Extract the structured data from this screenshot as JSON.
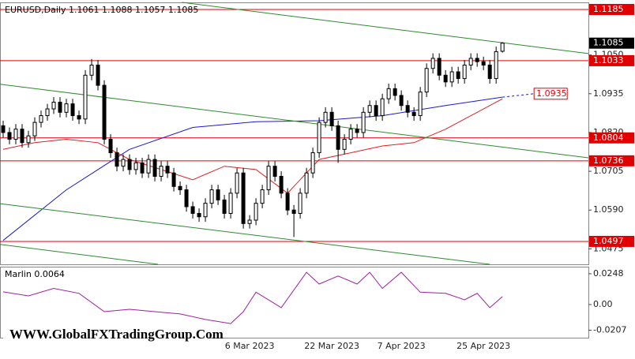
{
  "chart_data": [
    {
      "type": "candlestick",
      "title": "EURUSD,Daily  1.1061 1.1088 1.1057 1.1085",
      "categories": [
        null,
        null,
        null,
        null,
        null,
        null,
        null,
        null,
        null,
        null,
        null,
        null,
        null,
        null,
        null,
        null,
        null,
        null,
        null,
        null,
        null,
        null,
        null,
        null,
        null,
        null,
        null,
        null,
        null,
        null,
        null,
        null,
        null,
        null,
        null,
        null,
        null,
        null,
        null,
        "6 Mar 2023",
        null,
        null,
        null,
        null,
        null,
        null,
        null,
        null,
        null,
        null,
        null,
        null,
        "22 Mar 2023",
        null,
        null,
        null,
        null,
        null,
        null,
        null,
        null,
        null,
        null,
        "7 Apr 2023",
        null,
        null,
        null,
        null,
        null,
        null,
        null,
        null,
        null,
        null,
        null,
        null,
        "25 Apr 2023",
        null,
        null,
        null
      ],
      "open": [
        1.084,
        1.082,
        1.08,
        1.083,
        1.079,
        1.081,
        1.085,
        1.087,
        1.089,
        1.091,
        1.088,
        1.0905,
        1.087,
        1.086,
        1.099,
        1.102,
        1.096,
        1.08,
        1.076,
        1.072,
        1.074,
        1.071,
        1.073,
        1.07,
        1.074,
        1.069,
        1.072,
        1.07,
        1.066,
        1.065,
        1.06,
        1.058,
        1.057,
        1.061,
        1.065,
        1.062,
        1.058,
        1.064,
        1.07,
        1.055,
        1.056,
        1.061,
        1.065,
        1.072,
        1.069,
        1.064,
        1.059,
        1.058,
        1.064,
        1.07,
        1.076,
        1.085,
        1.088,
        1.084,
        1.077,
        1.08,
        1.083,
        1.082,
        1.088,
        1.09,
        1.087,
        1.092,
        1.095,
        1.093,
        1.09,
        1.088,
        1.087,
        1.094,
        1.101,
        1.104,
        1.099,
        1.097,
        1.1,
        1.098,
        1.102,
        1.104,
        1.103,
        1.102,
        1.098,
        1.1061
      ],
      "high": [
        1.0855,
        1.0835,
        1.0845,
        1.0845,
        1.0825,
        1.0865,
        1.0885,
        1.0905,
        1.0925,
        1.0925,
        1.092,
        1.092,
        1.0885,
        1.1005,
        1.1038,
        1.1035,
        1.0975,
        1.0815,
        1.0775,
        1.0755,
        1.0755,
        1.0745,
        1.0745,
        1.0755,
        1.0755,
        1.0735,
        1.0735,
        1.0715,
        1.0675,
        1.0665,
        1.0615,
        1.0595,
        1.0625,
        1.0665,
        1.0665,
        1.0635,
        1.0655,
        1.0715,
        1.0715,
        1.0575,
        1.0625,
        1.0665,
        1.0735,
        1.0735,
        1.0705,
        1.0655,
        1.0605,
        1.0655,
        1.0715,
        1.0775,
        1.0865,
        1.0895,
        1.0895,
        1.0855,
        1.0815,
        1.0845,
        1.0845,
        1.0895,
        1.0915,
        1.0915,
        1.0935,
        1.0965,
        1.0965,
        1.0945,
        1.0915,
        1.0895,
        1.0955,
        1.1025,
        1.1055,
        1.1055,
        1.1005,
        1.1015,
        1.1015,
        1.1035,
        1.1055,
        1.1055,
        1.1045,
        1.1035,
        1.1075,
        1.1088
      ],
      "low": [
        1.0805,
        1.0785,
        1.0785,
        1.0775,
        1.0775,
        1.0795,
        1.0835,
        1.0855,
        1.0875,
        1.0865,
        1.0865,
        1.0855,
        1.0845,
        1.0845,
        1.0975,
        1.0945,
        1.0785,
        1.0745,
        1.0705,
        1.0705,
        1.0695,
        1.0695,
        1.0685,
        1.0685,
        1.0675,
        1.0675,
        1.0685,
        1.0645,
        1.0635,
        1.0585,
        1.0565,
        1.0555,
        1.0555,
        1.0595,
        1.0605,
        1.0565,
        1.0565,
        1.0625,
        1.0535,
        1.0535,
        1.0545,
        1.0595,
        1.0635,
        1.0675,
        1.0625,
        1.0575,
        1.051,
        1.0565,
        1.0625,
        1.0685,
        1.0745,
        1.0835,
        1.0825,
        1.073,
        1.0755,
        1.0785,
        1.0805,
        1.0805,
        1.0865,
        1.0855,
        1.0855,
        1.0905,
        1.0915,
        1.0885,
        1.0865,
        1.0855,
        1.0855,
        1.0925,
        1.0995,
        1.0975,
        1.0955,
        1.0955,
        1.0965,
        1.0965,
        1.1005,
        1.1015,
        1.1005,
        1.0965,
        1.0965,
        1.1057
      ],
      "close": [
        1.082,
        1.08,
        1.083,
        1.079,
        1.081,
        1.085,
        1.087,
        1.089,
        1.091,
        1.088,
        1.0905,
        1.087,
        1.086,
        1.099,
        1.102,
        1.096,
        1.08,
        1.076,
        1.072,
        1.074,
        1.071,
        1.073,
        1.07,
        1.074,
        1.069,
        1.072,
        1.07,
        1.066,
        1.065,
        1.06,
        1.058,
        1.057,
        1.061,
        1.065,
        1.062,
        1.058,
        1.064,
        1.07,
        1.055,
        1.056,
        1.061,
        1.065,
        1.072,
        1.069,
        1.064,
        1.059,
        1.058,
        1.064,
        1.07,
        1.076,
        1.085,
        1.088,
        1.084,
        1.077,
        1.08,
        1.083,
        1.082,
        1.088,
        1.09,
        1.087,
        1.092,
        1.095,
        1.093,
        1.09,
        1.088,
        1.087,
        1.094,
        1.101,
        1.104,
        1.099,
        1.097,
        1.1,
        1.098,
        1.102,
        1.104,
        1.103,
        1.102,
        1.098,
        1.106,
        1.1085
      ],
      "xlim": [
        -0.5,
        92.6
      ],
      "ylim": [
        1.0429,
        1.1206
      ],
      "yticks": [
        {
          "value": 1.105,
          "label": "1.1050"
        },
        1.0935,
        {
          "value": 1.082,
          "label": "1.0820"
        },
        1.0705,
        {
          "value": 1.059,
          "label": "1.0590"
        },
        1.0475
      ],
      "levels": [
        {
          "value": 1.1185,
          "color": "#e00000"
        },
        {
          "value": 1.1033,
          "color": "#e00000"
        },
        {
          "value": 1.0804,
          "color": "#e00000"
        },
        {
          "value": 1.0736,
          "color": "#e00000"
        },
        {
          "value": 1.0497,
          "color": "#e00000"
        }
      ],
      "lines": [
        {
          "color": "#1a1ad0",
          "x": [
            0,
            10,
            20,
            30,
            40,
            50,
            60,
            70,
            79
          ],
          "values": [
            1.05,
            1.065,
            1.077,
            1.0835,
            1.0852,
            1.0855,
            1.087,
            1.09,
            1.0925
          ]
        },
        {
          "color": "#e02020",
          "x": [
            0,
            5,
            10,
            15,
            20,
            25,
            30,
            35,
            40,
            45,
            50,
            55,
            60,
            65,
            70,
            75,
            79
          ],
          "values": [
            1.077,
            1.079,
            1.08,
            1.079,
            1.074,
            1.071,
            1.068,
            1.072,
            1.071,
            1.064,
            1.074,
            1.076,
            1.078,
            1.079,
            1.083,
            1.088,
            1.092
          ]
        },
        {
          "color": "#2e8b2e",
          "x": [
            28.3,
            92.6
          ],
          "values": [
            1.1206,
            1.1054
          ]
        },
        {
          "color": "#2e8b2e",
          "x": [
            -0.5,
            92.6
          ],
          "values": [
            1.0963,
            1.0745
          ]
        },
        {
          "color": "#2e8b2e",
          "x": [
            -0.5,
            77
          ],
          "values": [
            1.0609,
            1.0429
          ]
        },
        {
          "color": "#2e8b2e",
          "x": [
            -0.5,
            24.5
          ],
          "values": [
            1.0488,
            1.0429
          ]
        }
      ],
      "projection": {
        "color": "#1a1ad0",
        "x": [
          79,
          84
        ],
        "values": [
          1.0925,
          1.0935
        ]
      }
    },
    {
      "type": "line",
      "title": "Marlin 0.0064",
      "color": "#a020a0",
      "x": [
        0,
        4,
        8,
        12,
        16,
        20,
        24,
        28,
        32,
        36,
        38,
        40,
        44,
        48,
        50,
        53,
        56,
        58,
        60,
        63,
        66,
        70,
        73,
        75,
        77,
        79
      ],
      "values": [
        0.0102,
        0.007,
        0.013,
        0.009,
        -0.0057,
        -0.0038,
        -0.0057,
        -0.0076,
        -0.012,
        -0.0153,
        -0.0057,
        0.01,
        -0.0025,
        0.026,
        0.0165,
        0.023,
        0.0165,
        0.026,
        0.013,
        0.026,
        0.01,
        0.009,
        0.0038,
        0.009,
        -0.0025,
        0.0064
      ],
      "xlim": [
        -0.5,
        92.6
      ],
      "ylim": [
        -0.0267,
        0.0305
      ],
      "yticks": [
        0.0248,
        {
          "value": 0,
          "label": "0.00"
        },
        -0.0207
      ]
    }
  ],
  "watermark": "WWW.GlobalFXTradingGroup.Com"
}
